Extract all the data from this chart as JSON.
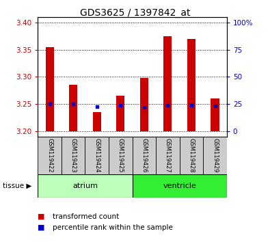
{
  "title": "GDS3625 / 1397842_at",
  "samples": [
    "GSM119422",
    "GSM119423",
    "GSM119424",
    "GSM119425",
    "GSM119426",
    "GSM119427",
    "GSM119428",
    "GSM119429"
  ],
  "transformed_count_top": [
    3.355,
    3.285,
    3.235,
    3.265,
    3.298,
    3.375,
    3.37,
    3.26
  ],
  "transformed_count_bottom": [
    3.2,
    3.2,
    3.2,
    3.2,
    3.2,
    3.2,
    3.2,
    3.2
  ],
  "percentile_rank": [
    3.25,
    3.25,
    3.245,
    3.248,
    3.244,
    3.248,
    3.248,
    3.246
  ],
  "ylim_left": [
    3.19,
    3.41
  ],
  "yticks_left": [
    3.2,
    3.25,
    3.3,
    3.35,
    3.4
  ],
  "yticks_right": [
    0,
    25,
    50,
    75,
    100
  ],
  "bar_color": "#cc0000",
  "percentile_color": "#0000cc",
  "tissue_groups": [
    {
      "label": "atrium",
      "indices": [
        0,
        1,
        2,
        3
      ],
      "color": "#bbffbb"
    },
    {
      "label": "ventricle",
      "indices": [
        4,
        5,
        6,
        7
      ],
      "color": "#33ee33"
    }
  ],
  "ylabel_left_color": "#cc0000",
  "ylabel_right_color": "#0000cc",
  "legend_items": [
    "transformed count",
    "percentile rank within the sample"
  ]
}
